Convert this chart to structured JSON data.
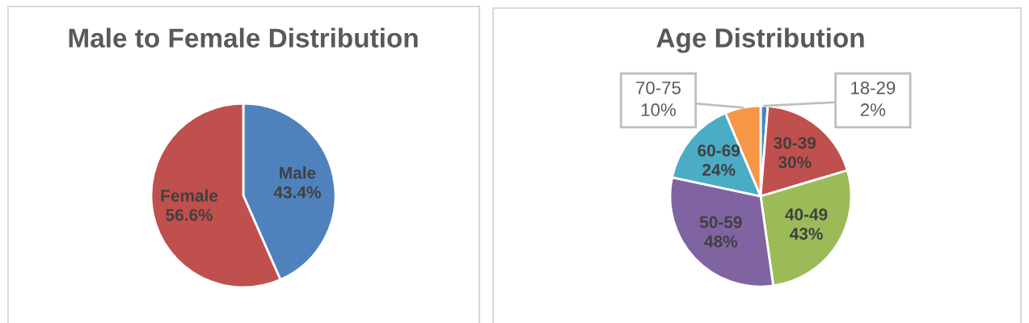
{
  "chart_data": [
    {
      "type": "pie",
      "title": "Male to Female Distribution",
      "categories": [
        "Male",
        "Female"
      ],
      "values": [
        43.4,
        56.6
      ],
      "colors": [
        "#4f81bd",
        "#c0504d"
      ],
      "value_labels": [
        "43.4%",
        "56.6%"
      ]
    },
    {
      "type": "pie",
      "title": "Age Distribution",
      "categories": [
        "18-29",
        "30-39",
        "40-49",
        "50-59",
        "60-69",
        "70-75"
      ],
      "values": [
        2,
        30,
        43,
        48,
        24,
        10
      ],
      "colors": [
        "#4f81bd",
        "#c0504d",
        "#9bbb59",
        "#8064a2",
        "#4bacc6",
        "#f79646"
      ],
      "value_labels": [
        "2%",
        "30%",
        "43%",
        "48%",
        "24%",
        "10%"
      ]
    }
  ]
}
